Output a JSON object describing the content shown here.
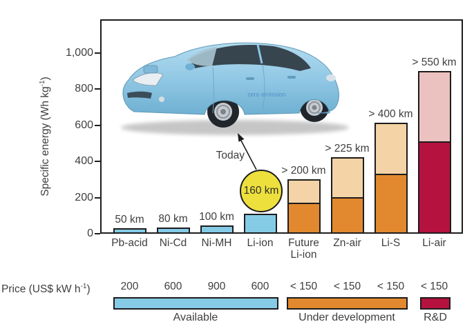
{
  "labels": {
    "ylabel_main": "Specific energy (Wh kg",
    "ylabel_sup": "-1",
    "ylabel_close": ")",
    "price_main": "Price (US$ kW h",
    "price_sup": "-1",
    "price_close": ")"
  },
  "chart_data": {
    "type": "bar",
    "stacked": true,
    "ylabel": "Specific energy (Wh kg-1)",
    "ylim": [
      0,
      1100
    ],
    "grid": false,
    "yticks": [
      {
        "value": 0,
        "label": "0"
      },
      {
        "value": 200,
        "label": "200"
      },
      {
        "value": 400,
        "label": "400"
      },
      {
        "value": 600,
        "label": "600"
      },
      {
        "value": 800,
        "label": "800"
      },
      {
        "value": 1000,
        "label": "1,000"
      }
    ],
    "bars": [
      {
        "category": "Pb-acid",
        "range": "50 km",
        "price": "200",
        "segments": [
          {
            "key": "available",
            "value": 30
          }
        ]
      },
      {
        "category": "Ni-Cd",
        "range": "80 km",
        "price": "600",
        "segments": [
          {
            "key": "available",
            "value": 35
          }
        ]
      },
      {
        "category": "Ni-MH",
        "range": "100 km",
        "price": "900",
        "segments": [
          {
            "key": "available",
            "value": 45
          }
        ]
      },
      {
        "category": "Li-ion",
        "range": "160 km",
        "price": "600",
        "range_in_circle": true,
        "segments": [
          {
            "key": "available",
            "value": 110
          }
        ]
      },
      {
        "category": "Future\nLi-ion",
        "range": "> 200 km",
        "price": "< 150",
        "segments": [
          {
            "key": "under_development",
            "value": 165
          },
          {
            "key": "under_development_projected",
            "value": 135
          }
        ]
      },
      {
        "category": "Zn-air",
        "range": "> 225 km",
        "price": "< 150",
        "segments": [
          {
            "key": "under_development",
            "value": 195
          },
          {
            "key": "under_development_projected",
            "value": 230
          }
        ]
      },
      {
        "category": "Li-S",
        "range": "> 400 km",
        "price": "< 150",
        "segments": [
          {
            "key": "under_development",
            "value": 325
          },
          {
            "key": "under_development_projected",
            "value": 290
          }
        ]
      },
      {
        "category": "Li-air",
        "range": "> 550 km",
        "price": "< 150",
        "segments": [
          {
            "key": "rnd",
            "value": 505
          },
          {
            "key": "rnd_projected",
            "value": 395
          }
        ]
      }
    ],
    "colors": {
      "available": "#85CBE6",
      "under_development": "#E2892F",
      "under_development_projected": "#F4D3A6",
      "rnd": "#B5123F",
      "rnd_projected": "#EBC2BF",
      "today_circle": "#EDE03C",
      "axis": "#1c1c1c"
    },
    "legend": [
      {
        "label": "Available",
        "color_key": "available"
      },
      {
        "label": "Under development",
        "color_key": "under_development"
      },
      {
        "label": "R&D",
        "color_key": "rnd"
      }
    ],
    "annotations": {
      "today": "Today",
      "circle_label": "160 km",
      "car_decal": "zero emission"
    }
  }
}
